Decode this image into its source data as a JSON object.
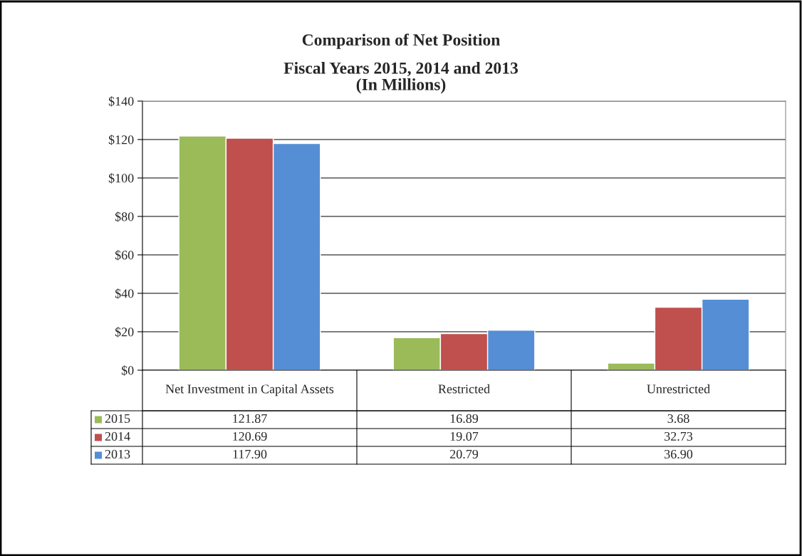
{
  "chart_data": {
    "type": "bar",
    "title": "Comparison of Net Position",
    "subtitle": "Fiscal Years 2015, 2014 and 2013\n(In Millions)",
    "categories": [
      "Net Investment in Capital Assets",
      "Restricted",
      "Unrestricted"
    ],
    "series": [
      {
        "name": "2015",
        "color": "#9bbb59",
        "values": [
          121.87,
          16.89,
          3.68
        ],
        "value_labels": [
          "121.87",
          "16.89",
          "3.68"
        ]
      },
      {
        "name": "2014",
        "color": "#c0504d",
        "values": [
          120.69,
          19.07,
          32.73
        ],
        "value_labels": [
          "120.69",
          "19.07",
          "32.73"
        ]
      },
      {
        "name": "2013",
        "color": "#558ed5",
        "values": [
          117.9,
          20.79,
          36.9
        ],
        "value_labels": [
          "117.90",
          "20.79",
          "36.90"
        ]
      }
    ],
    "ylim": [
      0,
      140
    ],
    "yticks": [
      {
        "value": 0,
        "label": "$0"
      },
      {
        "value": 20,
        "label": "$20"
      },
      {
        "value": 40,
        "label": "$40"
      },
      {
        "value": 60,
        "label": "$60"
      },
      {
        "value": 80,
        "label": "$80"
      },
      {
        "value": 100,
        "label": "$100"
      },
      {
        "value": 120,
        "label": "$120"
      },
      {
        "value": 140,
        "label": "$140"
      }
    ],
    "grid": "y",
    "legend": "bottom"
  }
}
